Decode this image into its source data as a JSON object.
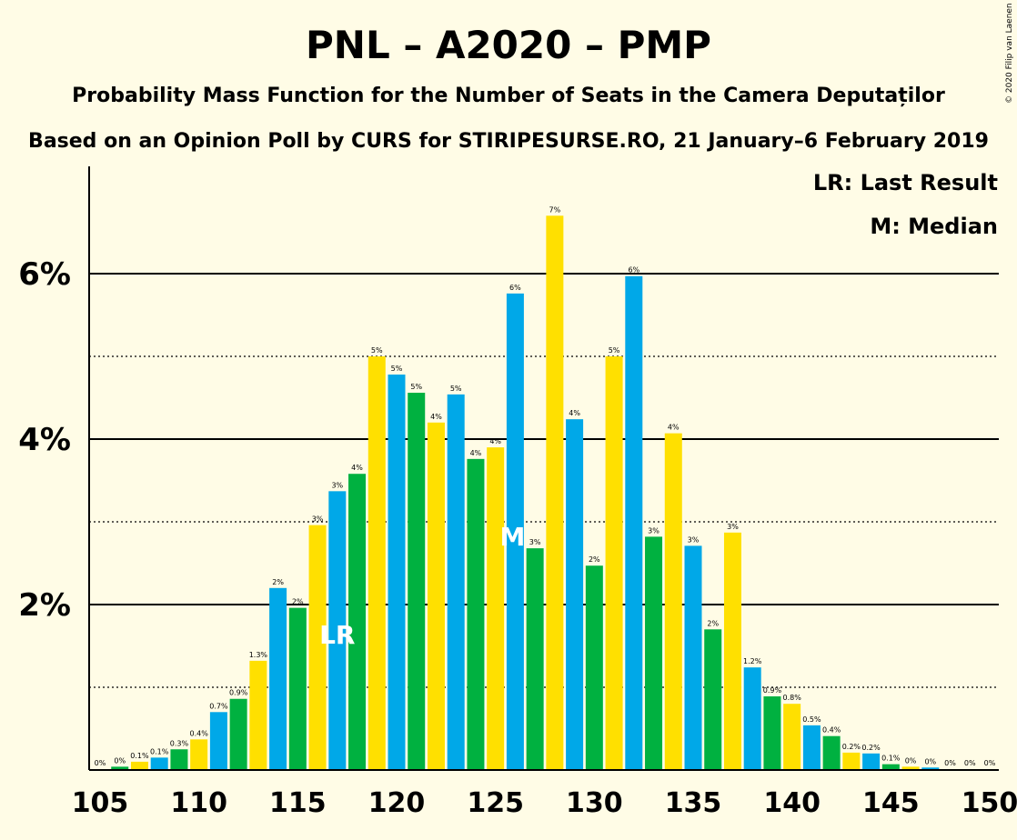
{
  "title": "PNL – A2020 – PMP",
  "subtitle1": "Probability Mass Function for the Number of Seats in the Camera Deputaților",
  "subtitle2": "Based on an Opinion Poll by CURS for STIRIPESURSE.RO, 21 January–6 February 2019",
  "copyright": "© 2020 Filip van Laenen",
  "legend": {
    "last_result": "LR: Last Result",
    "median": "M: Median"
  },
  "colors": {
    "background": "#FFFCE6",
    "series": [
      "#00A8E8",
      "#00B140",
      "#FFE000"
    ]
  },
  "chart_data": {
    "type": "bar",
    "title": "PNL – A2020 – PMP",
    "xlabel": "",
    "ylabel": "",
    "x_ticks": [
      105,
      110,
      115,
      120,
      125,
      130,
      135,
      140,
      145,
      150
    ],
    "y_ticks": [
      {
        "value": 2,
        "label": "2%"
      },
      {
        "value": 4,
        "label": "4%"
      },
      {
        "value": 6,
        "label": "6%"
      }
    ],
    "ylim": [
      0,
      7.2
    ],
    "solid_gridlines": [
      2,
      4,
      6
    ],
    "dotted_gridlines": [
      1,
      3,
      5
    ],
    "last_result_seat": 117,
    "median_seat": 126,
    "categories": [
      105,
      106,
      107,
      108,
      109,
      110,
      111,
      112,
      113,
      114,
      115,
      116,
      117,
      118,
      119,
      120,
      121,
      122,
      123,
      124,
      125,
      126,
      127,
      128,
      129,
      130,
      131,
      132,
      133,
      134,
      135,
      136,
      137,
      138,
      139,
      140,
      141,
      142,
      143,
      144,
      145,
      146,
      147,
      148,
      149,
      150
    ],
    "values": [
      0.01,
      0.04,
      0.1,
      0.15,
      0.25,
      0.37,
      0.7,
      0.86,
      1.32,
      2.2,
      1.96,
      2.96,
      3.37,
      3.58,
      5.0,
      4.78,
      4.56,
      4.2,
      4.54,
      3.76,
      3.9,
      5.76,
      2.68,
      6.7,
      4.24,
      2.47,
      5.0,
      5.97,
      2.82,
      4.07,
      2.71,
      1.7,
      2.87,
      1.24,
      0.89,
      0.8,
      0.54,
      0.41,
      0.21,
      0.2,
      0.07,
      0.04,
      0.03,
      0.01,
      0.01,
      0.01
    ],
    "labels": [
      "0%",
      "0%",
      "0.1%",
      "0.1%",
      "0.3%",
      "0.4%",
      "0.7%",
      "0.9%",
      "1.3%",
      "2%",
      "2%",
      "3%",
      "3%",
      "4%",
      "5%",
      "5%",
      "5%",
      "4%",
      "5%",
      "4%",
      "4%",
      "6%",
      "3%",
      "7%",
      "4%",
      "2%",
      "5%",
      "6%",
      "3%",
      "4%",
      "3%",
      "2%",
      "3%",
      "1.2%",
      "0.9%",
      "0.8%",
      "0.5%",
      "0.4%",
      "0.2%",
      "0.2%",
      "0.1%",
      "0%",
      "0%",
      "0%",
      "0%",
      "0%"
    ]
  }
}
